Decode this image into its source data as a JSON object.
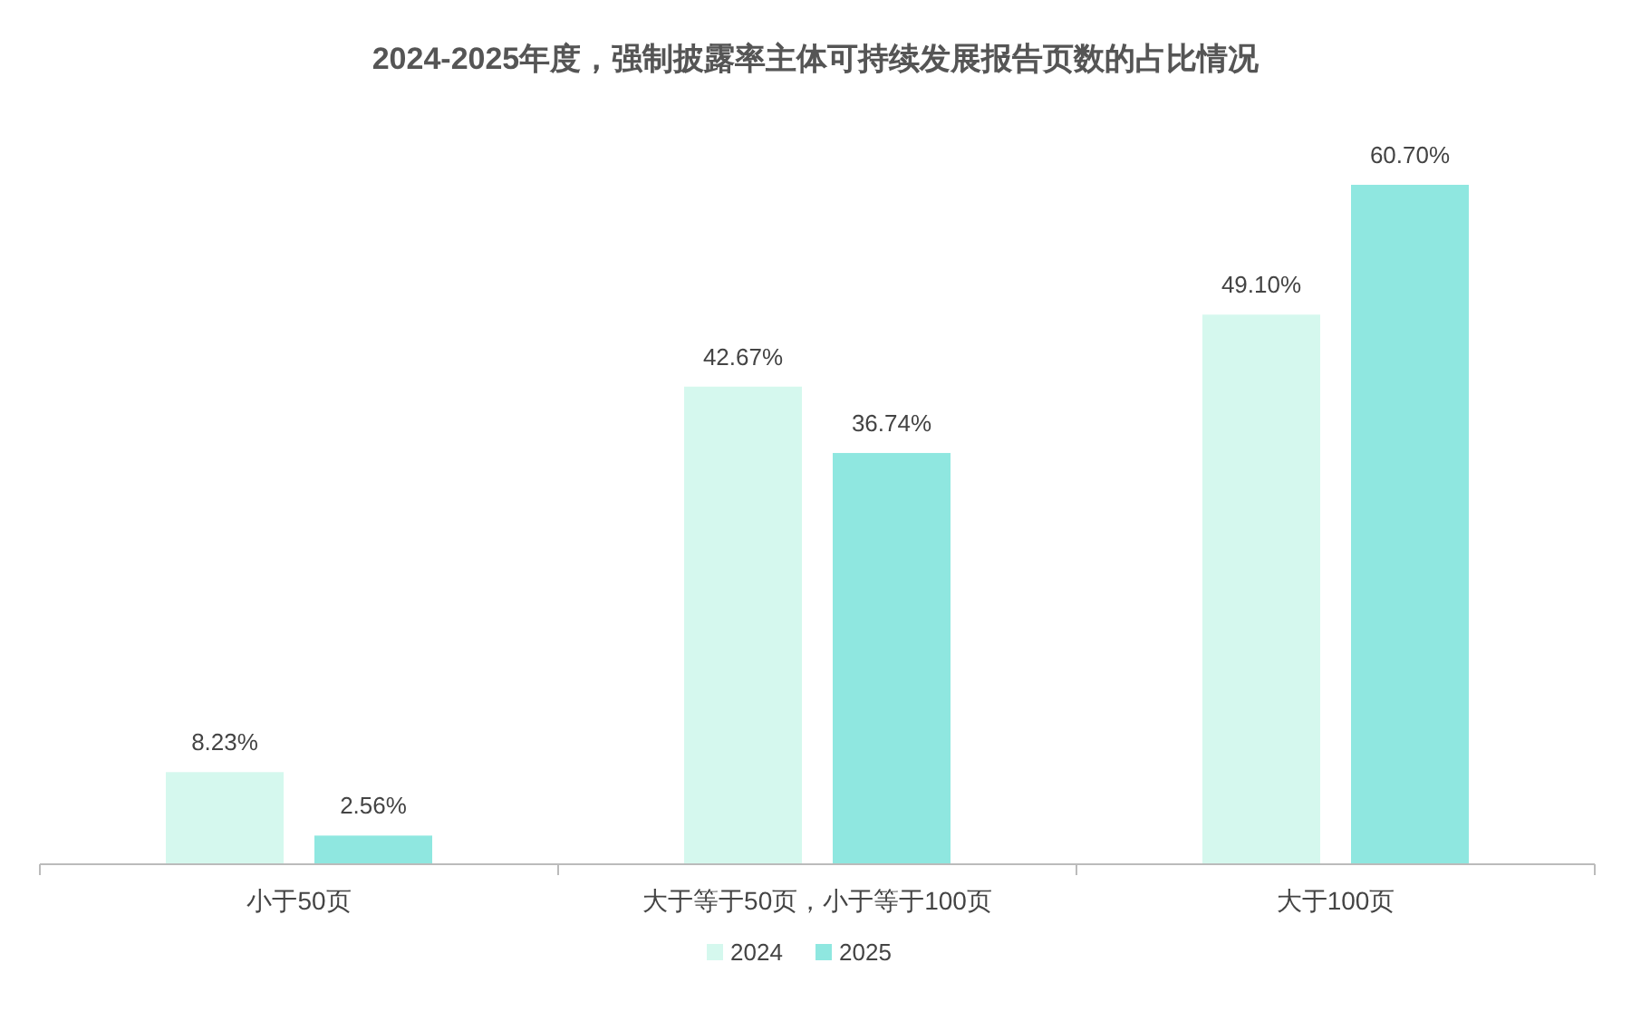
{
  "chart_data": {
    "type": "bar",
    "title": "2024-2025年度，强制披露率主体可持续发展报告页数的占比情况",
    "categories": [
      "小于50页",
      "大于等于50页，小于等于100页",
      "大于100页"
    ],
    "series": [
      {
        "name": "2024",
        "color": "#d5f8ee",
        "values": [
          8.23,
          42.67,
          49.1
        ],
        "value_labels": [
          "8.23%",
          "42.67%",
          "49.10%"
        ]
      },
      {
        "name": "2025",
        "color": "#8fe7e0",
        "values": [
          2.56,
          36.74,
          60.7
        ],
        "value_labels": [
          "2.56%",
          "36.74%",
          "60.70%"
        ]
      }
    ],
    "legend": "bottom"
  }
}
